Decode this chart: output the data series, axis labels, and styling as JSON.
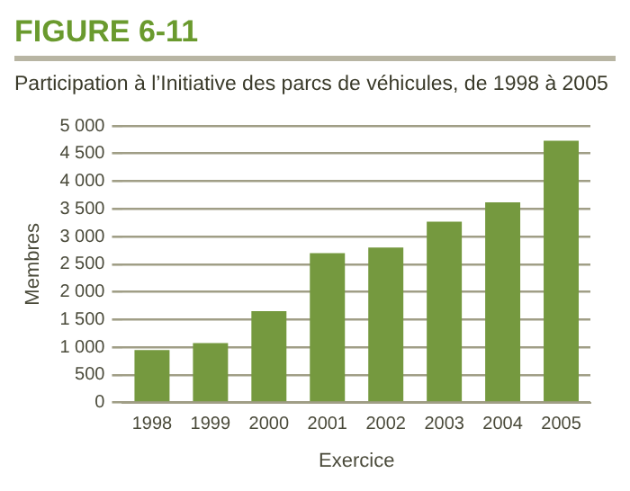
{
  "chart_data": {
    "type": "bar",
    "title": "FIGURE 6-11",
    "subtitle": "Participation à l’Initiative des parcs de véhicules, de 1998 à 2005",
    "xlabel": "Exercice",
    "ylabel": "Membres",
    "categories": [
      "1998",
      "1999",
      "2000",
      "2001",
      "2002",
      "2003",
      "2004",
      "2005"
    ],
    "values": [
      950,
      1075,
      1650,
      2700,
      2800,
      3270,
      3620,
      4730
    ],
    "color": "#75993f",
    "ylim": [
      0,
      5000
    ],
    "yticks": [
      0,
      500,
      {
        "value": 1000,
        "label": "1 000"
      },
      {
        "value": 1500,
        "label": "1 500"
      },
      {
        "value": 2000,
        "label": "2 000"
      },
      {
        "value": 2500,
        "label": "2 500"
      },
      {
        "value": 3000,
        "label": "3 000"
      },
      {
        "value": 3500,
        "label": "3 500"
      },
      {
        "value": 4000,
        "label": "4 000"
      },
      {
        "value": 4500,
        "label": "4 500"
      },
      {
        "value": 5000,
        "label": "5 000"
      }
    ],
    "grid": "y",
    "legend": false
  }
}
